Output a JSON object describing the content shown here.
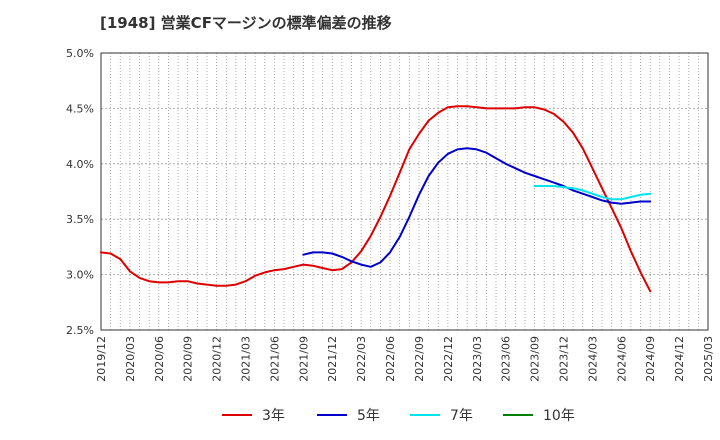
{
  "chart_data": {
    "type": "line",
    "title": "[1948]  営業CFマージンの標準偏差の推移",
    "xlabel": "",
    "ylabel": "",
    "x_ticks": [
      "2019/12",
      "2020/03",
      "2020/06",
      "2020/09",
      "2020/12",
      "2021/03",
      "2021/06",
      "2021/09",
      "2021/12",
      "2022/03",
      "2022/06",
      "2022/09",
      "2022/12",
      "2023/03",
      "2023/06",
      "2023/09",
      "2023/12",
      "2024/03",
      "2024/06",
      "2024/09",
      "2024/12",
      "2025/03"
    ],
    "y_ticks": [
      "2.5%",
      "3.0%",
      "3.5%",
      "4.0%",
      "4.5%",
      "5.0%"
    ],
    "ylim": [
      2.5,
      5.0
    ],
    "grid": true,
    "legend_position": "bottom",
    "series": [
      {
        "name": "3年",
        "color": "#dd0000",
        "points": [
          [
            "2019/12",
            3.2
          ],
          [
            "2020/01",
            3.19
          ],
          [
            "2020/02",
            3.14
          ],
          [
            "2020/03",
            3.03
          ],
          [
            "2020/04",
            2.97
          ],
          [
            "2020/05",
            2.94
          ],
          [
            "2020/06",
            2.93
          ],
          [
            "2020/07",
            2.93
          ],
          [
            "2020/08",
            2.94
          ],
          [
            "2020/09",
            2.94
          ],
          [
            "2020/10",
            2.92
          ],
          [
            "2020/11",
            2.91
          ],
          [
            "2020/12",
            2.9
          ],
          [
            "2021/01",
            2.9
          ],
          [
            "2021/02",
            2.91
          ],
          [
            "2021/03",
            2.94
          ],
          [
            "2021/04",
            2.99
          ],
          [
            "2021/05",
            3.02
          ],
          [
            "2021/06",
            3.04
          ],
          [
            "2021/07",
            3.05
          ],
          [
            "2021/08",
            3.07
          ],
          [
            "2021/09",
            3.09
          ],
          [
            "2021/10",
            3.08
          ],
          [
            "2021/11",
            3.06
          ],
          [
            "2021/12",
            3.04
          ],
          [
            "2022/01",
            3.05
          ],
          [
            "2022/02",
            3.11
          ],
          [
            "2022/03",
            3.21
          ],
          [
            "2022/04",
            3.35
          ],
          [
            "2022/05",
            3.52
          ],
          [
            "2022/06",
            3.71
          ],
          [
            "2022/07",
            3.92
          ],
          [
            "2022/08",
            4.13
          ],
          [
            "2022/09",
            4.27
          ],
          [
            "2022/10",
            4.39
          ],
          [
            "2022/11",
            4.46
          ],
          [
            "2022/12",
            4.51
          ],
          [
            "2023/01",
            4.52
          ],
          [
            "2023/02",
            4.52
          ],
          [
            "2023/03",
            4.51
          ],
          [
            "2023/04",
            4.5
          ],
          [
            "2023/05",
            4.5
          ],
          [
            "2023/06",
            4.5
          ],
          [
            "2023/07",
            4.5
          ],
          [
            "2023/08",
            4.51
          ],
          [
            "2023/09",
            4.51
          ],
          [
            "2023/10",
            4.49
          ],
          [
            "2023/11",
            4.45
          ],
          [
            "2023/12",
            4.38
          ],
          [
            "2024/01",
            4.28
          ],
          [
            "2024/02",
            4.14
          ],
          [
            "2024/03",
            3.96
          ],
          [
            "2024/04",
            3.78
          ],
          [
            "2024/05",
            3.6
          ],
          [
            "2024/06",
            3.42
          ],
          [
            "2024/07",
            3.21
          ],
          [
            "2024/08",
            3.02
          ],
          [
            "2024/09",
            2.85
          ]
        ]
      },
      {
        "name": "5年",
        "color": "#0000cc",
        "points": [
          [
            "2021/09",
            3.18
          ],
          [
            "2021/10",
            3.2
          ],
          [
            "2021/11",
            3.2
          ],
          [
            "2021/12",
            3.19
          ],
          [
            "2022/01",
            3.16
          ],
          [
            "2022/02",
            3.12
          ],
          [
            "2022/03",
            3.09
          ],
          [
            "2022/04",
            3.07
          ],
          [
            "2022/05",
            3.11
          ],
          [
            "2022/06",
            3.2
          ],
          [
            "2022/07",
            3.34
          ],
          [
            "2022/08",
            3.52
          ],
          [
            "2022/09",
            3.72
          ],
          [
            "2022/10",
            3.89
          ],
          [
            "2022/11",
            4.01
          ],
          [
            "2022/12",
            4.09
          ],
          [
            "2023/01",
            4.13
          ],
          [
            "2023/02",
            4.14
          ],
          [
            "2023/03",
            4.13
          ],
          [
            "2023/04",
            4.1
          ],
          [
            "2023/05",
            4.05
          ],
          [
            "2023/06",
            4.0
          ],
          [
            "2023/07",
            3.96
          ],
          [
            "2023/08",
            3.92
          ],
          [
            "2023/09",
            3.89
          ],
          [
            "2023/10",
            3.86
          ],
          [
            "2023/11",
            3.83
          ],
          [
            "2023/12",
            3.8
          ],
          [
            "2024/01",
            3.76
          ],
          [
            "2024/02",
            3.73
          ],
          [
            "2024/03",
            3.7
          ],
          [
            "2024/04",
            3.67
          ],
          [
            "2024/05",
            3.65
          ],
          [
            "2024/06",
            3.64
          ],
          [
            "2024/07",
            3.65
          ],
          [
            "2024/08",
            3.66
          ],
          [
            "2024/09",
            3.66
          ]
        ]
      },
      {
        "name": "7年",
        "color": "#00e5ee",
        "points": [
          [
            "2023/09",
            3.8
          ],
          [
            "2023/10",
            3.8
          ],
          [
            "2023/11",
            3.8
          ],
          [
            "2023/12",
            3.79
          ],
          [
            "2024/01",
            3.78
          ],
          [
            "2024/02",
            3.76
          ],
          [
            "2024/03",
            3.73
          ],
          [
            "2024/04",
            3.7
          ],
          [
            "2024/05",
            3.68
          ],
          [
            "2024/06",
            3.68
          ],
          [
            "2024/07",
            3.7
          ],
          [
            "2024/08",
            3.72
          ],
          [
            "2024/09",
            3.73
          ]
        ]
      },
      {
        "name": "10年",
        "color": "#008000",
        "points": []
      }
    ]
  }
}
